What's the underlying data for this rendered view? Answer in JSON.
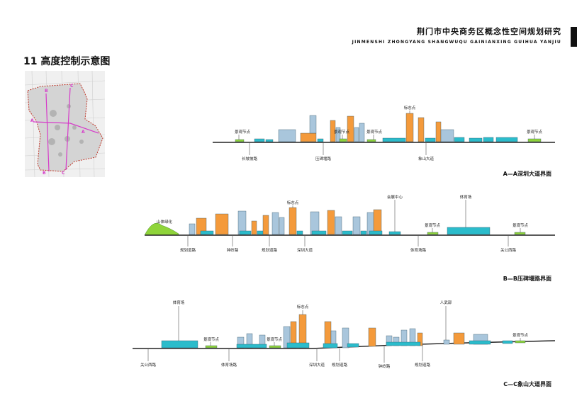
{
  "document": {
    "title": "荆门市中央商务区概念性空间规划研究",
    "subtitle": "JINMENSHI ZHONGYANG SHANGWUQU GAINIANXING GUIHUA YANJIU"
  },
  "section_heading": "11  高度控制示意图",
  "keymap": {
    "labels": [
      "A",
      "A",
      "B",
      "B",
      "C",
      "C"
    ]
  },
  "colors": {
    "tower_orange": "#f49a3b",
    "building_blue": "#a9c6dc",
    "podium_cyan": "#2bbccb",
    "landscape_green": "#8fd43a",
    "ground": "#222222",
    "boundary_red": "#c0392b",
    "axis_magenta": "#d63ac9"
  },
  "sections": [
    {
      "id": "a",
      "caption": "A—A深圳大道界面",
      "labels": [
        "景观节点",
        "景观节点",
        "景观节点",
        "标志点",
        "景观节点"
      ],
      "roads": [
        "长坡坡路",
        "压碑堰路",
        "象山大道"
      ]
    },
    {
      "id": "b",
      "caption": "B—B压碑堰路界面",
      "labels": [
        "山体绿化",
        "标志点",
        "会展中心",
        "体育场",
        "景观节点",
        "景观节点"
      ],
      "roads": [
        "规划道路",
        "钟岭路",
        "规划道路",
        "深圳大道",
        "体育场路",
        "关公西路"
      ]
    },
    {
      "id": "c",
      "caption": "C—C象山大道界面",
      "labels": [
        "体育场",
        "景观节点",
        "景观节点",
        "标志点",
        "人武部",
        "景观节点"
      ],
      "roads": [
        "关公西路",
        "体育场路",
        "深圳大道",
        "规划道路",
        "钟岭路",
        "规划道路"
      ]
    }
  ]
}
